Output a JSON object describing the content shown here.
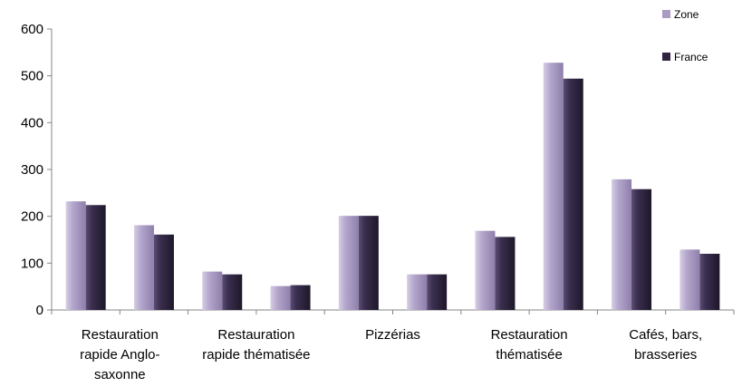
{
  "chart_data": {
    "type": "bar",
    "categories": [
      "Restauration rapide Anglo-saxonne",
      "",
      "Restauration rapide thématisée",
      "",
      "Pizzérias",
      "",
      "Restauration thématisée",
      "",
      "Cafés, bars, brasseries",
      ""
    ],
    "category_label_lines": [
      [
        "Restauration",
        "rapide Anglo-",
        "saxonne"
      ],
      [],
      [
        "Restauration",
        "rapide thématisée"
      ],
      [],
      [
        "Pizzérias"
      ],
      [],
      [
        "Restauration",
        "thématisée"
      ],
      [],
      [
        "Cafés, bars,",
        "brasseries"
      ],
      []
    ],
    "series": [
      {
        "name": "Zone",
        "color": "#a99bc2",
        "values": [
          232,
          181,
          82,
          51,
          201,
          76,
          169,
          528,
          279,
          129
        ]
      },
      {
        "name": "France",
        "color": "#2f2540",
        "values": [
          224,
          161,
          76,
          53,
          201,
          76,
          156,
          494,
          258,
          120
        ]
      }
    ],
    "ylim": [
      0,
      600
    ],
    "yticks": [
      "0",
      "100",
      "200",
      "300",
      "400",
      "500",
      "600"
    ],
    "xlabel": "",
    "ylabel": "",
    "legend": "top-right",
    "grid": false
  }
}
